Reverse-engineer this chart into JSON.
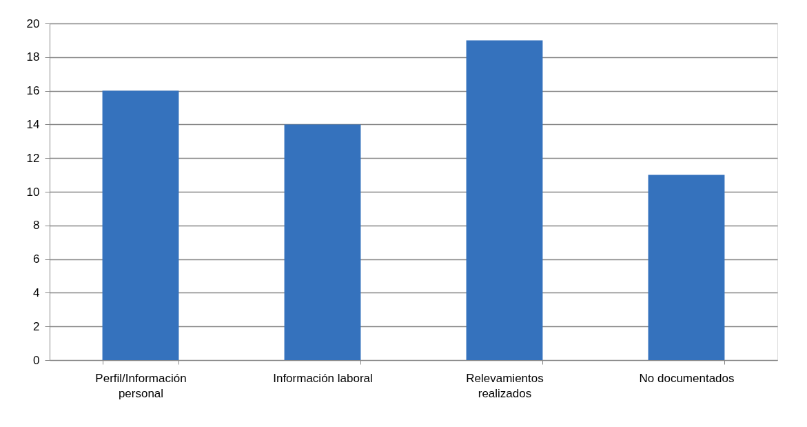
{
  "chart_data": {
    "type": "bar",
    "categories": [
      "Perfil/Información personal",
      "Información laboral",
      "Relevamientos realizados",
      "No documentados"
    ],
    "values": [
      16,
      14,
      19,
      11
    ],
    "color": "#3572bd",
    "ylim": [
      0,
      20
    ],
    "yticks": [
      0,
      2,
      4,
      6,
      8,
      10,
      12,
      14,
      16,
      18,
      20
    ],
    "grid": "y"
  }
}
